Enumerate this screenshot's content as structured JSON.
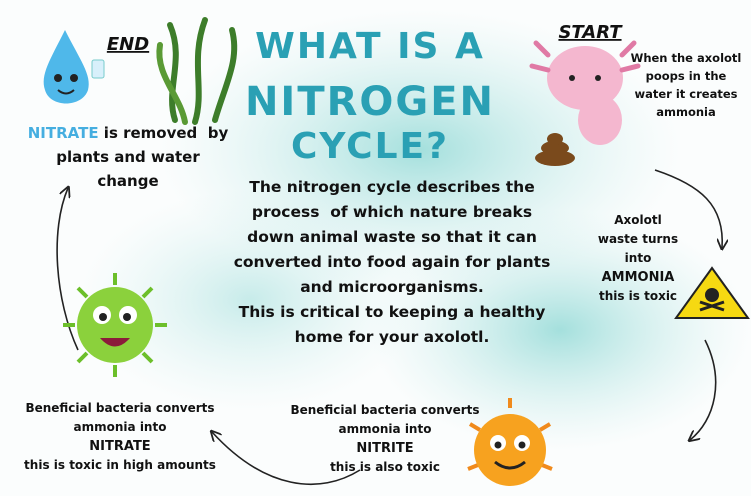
{
  "end_label": "END",
  "start_label": "START",
  "title": {
    "lines": [
      "WHAT IS A",
      "NITROGEN",
      "CYCLE?"
    ]
  },
  "description": {
    "lines": [
      "The nitrogen cycle describes the",
      "process  of which nature breaks",
      "down animal waste so that it can",
      "converted into food again for plants",
      "and microorganisms.",
      "This is critical to keeping a healthy",
      "home for your axolotl."
    ]
  },
  "start_step": {
    "lines": [
      "When the axolotl",
      "poops in the",
      "water it creates",
      "ammonia"
    ]
  },
  "ammonia_step": {
    "lines": [
      "Axolotl",
      "waste turns",
      "into"
    ],
    "keyword": "AMMONIA",
    "note": "this is toxic"
  },
  "nitrite_step": {
    "lines": [
      "Beneficial bacteria converts",
      "ammonia into"
    ],
    "keyword": "NITRITE",
    "note": "this is also toxic"
  },
  "nitrate_step": {
    "lines": [
      "Beneficial bacteria converts",
      "ammonia into"
    ],
    "keyword": "NITRATE",
    "note": "this is toxic in high amounts"
  },
  "end_step": {
    "keyword": "NITRATE",
    "lines": [
      " is removed  by",
      "plants and water",
      "change"
    ]
  }
}
